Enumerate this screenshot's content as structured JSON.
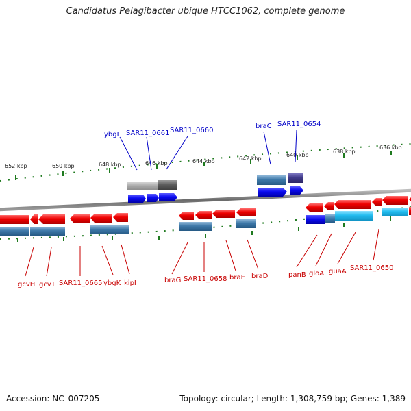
{
  "title": "Candidatus Pelagibacter ubique HTCC1062, complete genome",
  "footer": {
    "accession": "Accession: NC_007205",
    "topology": "Topology: circular; Length: 1,308,759 bp; Genes: 1,389"
  },
  "axis_labels": [
    "652 kbp",
    "650 kbp",
    "648 kbp",
    "646 kbp",
    "644 kbp",
    "642 kbp",
    "640 kbp",
    "638 kbp",
    "636 kbp"
  ],
  "colors": {
    "forward_gene": "#e00000",
    "reverse_label": "#c80000",
    "top_label": "#0000c8",
    "cds_blue": "#0a0af0",
    "cds_steel": "#3d78a8",
    "cds_gray": "#a8a8a8",
    "cds_dark": "#5a5a5a",
    "cds_cyan": "#22bdf0",
    "cds_purple": "#403a8a",
    "tick": "#1f7a1f",
    "backbone": "#7a7a7a"
  },
  "top_gene_labels": [
    "ybgL",
    "SAR11_0661",
    "SAR11_0660",
    "braC",
    "SAR11_0654"
  ],
  "bottom_gene_labels": [
    "gcvH",
    "gcvT",
    "SAR11_0665",
    "ybgK",
    "kipI",
    "braG",
    "SAR11_0658",
    "braE",
    "braD",
    "panB",
    "gloA",
    "guaA",
    "SAR11_0650"
  ]
}
